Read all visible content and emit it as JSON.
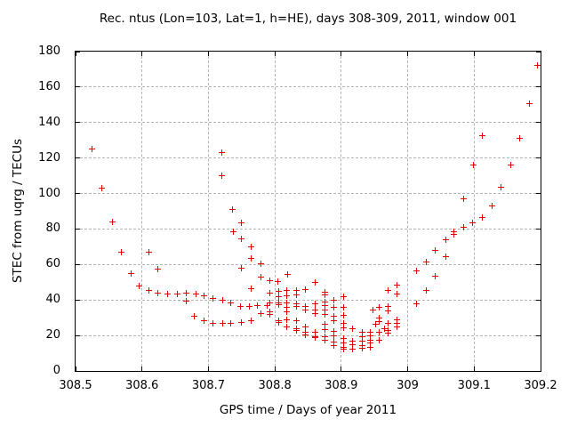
{
  "chart_data": {
    "type": "scatter",
    "title": "Rec. ntus (Lon=103, Lat=1, h=HE), days 308-309, 2011, window 001",
    "xlabel": "GPS time / Days of year 2011",
    "ylabel": "STEC from uqrg / TECUs",
    "xlim": [
      308.5,
      309.2
    ],
    "ylim": [
      0,
      180
    ],
    "xticks": [
      [
        308.5,
        "308.5"
      ],
      [
        308.6,
        "308.6"
      ],
      [
        308.7,
        "308.7"
      ],
      [
        308.8,
        "308.8"
      ],
      [
        308.9,
        "308.9"
      ],
      [
        309.0,
        "309"
      ],
      [
        309.1,
        "309.1"
      ],
      [
        309.2,
        "309.2"
      ]
    ],
    "yticks": [
      [
        0,
        "0"
      ],
      [
        20,
        "20"
      ],
      [
        40,
        "40"
      ],
      [
        60,
        "60"
      ],
      [
        80,
        "80"
      ],
      [
        100,
        "100"
      ],
      [
        120,
        "120"
      ],
      [
        140,
        "140"
      ],
      [
        160,
        "160"
      ],
      [
        180,
        "180"
      ]
    ],
    "grid": true,
    "legend_visible": false,
    "marker": "plus",
    "marker_color": "#e60000",
    "grid_color": "#b3b3b3",
    "border_color": "#000000",
    "points": [
      [
        308.525,
        125
      ],
      [
        308.54,
        103
      ],
      [
        308.555,
        84
      ],
      [
        308.569,
        67
      ],
      [
        308.583,
        55
      ],
      [
        308.596,
        48
      ],
      [
        308.61,
        45.5
      ],
      [
        308.624,
        44
      ],
      [
        308.638,
        43.5
      ],
      [
        308.653,
        43.5
      ],
      [
        308.666,
        44
      ],
      [
        308.666,
        39.5
      ],
      [
        308.61,
        67
      ],
      [
        308.624,
        57.5
      ],
      [
        308.681,
        43.5
      ],
      [
        308.694,
        42.5
      ],
      [
        308.707,
        41
      ],
      [
        308.721,
        40
      ],
      [
        308.734,
        38.5
      ],
      [
        308.748,
        36.5
      ],
      [
        308.761,
        36.5
      ],
      [
        308.774,
        37
      ],
      [
        308.788,
        37
      ],
      [
        308.679,
        31
      ],
      [
        308.694,
        28.5
      ],
      [
        308.707,
        27
      ],
      [
        308.721,
        27
      ],
      [
        308.734,
        27
      ],
      [
        308.749,
        27.5
      ],
      [
        308.765,
        28.5
      ],
      [
        308.779,
        32.5
      ],
      [
        308.72,
        123
      ],
      [
        308.72,
        110
      ],
      [
        308.736,
        91
      ],
      [
        308.75,
        83.5
      ],
      [
        308.737,
        78.5
      ],
      [
        308.75,
        74.5
      ],
      [
        308.765,
        70
      ],
      [
        308.765,
        63.5
      ],
      [
        308.75,
        58
      ],
      [
        308.779,
        60.5
      ],
      [
        308.779,
        53
      ],
      [
        308.792,
        51
      ],
      [
        308.804,
        50.5
      ],
      [
        308.819,
        54.5
      ],
      [
        308.765,
        46.5
      ],
      [
        308.792,
        44
      ],
      [
        308.792,
        38.5
      ],
      [
        308.792,
        33.5
      ],
      [
        308.792,
        32
      ],
      [
        308.806,
        45
      ],
      [
        308.806,
        42
      ],
      [
        308.806,
        38.5
      ],
      [
        308.806,
        37.5
      ],
      [
        308.806,
        28.5
      ],
      [
        308.806,
        27.5
      ],
      [
        308.818,
        45.5
      ],
      [
        308.818,
        42.5
      ],
      [
        308.818,
        38.5
      ],
      [
        308.818,
        36
      ],
      [
        308.818,
        33.5
      ],
      [
        308.818,
        29
      ],
      [
        308.818,
        25
      ],
      [
        308.832,
        45.5
      ],
      [
        308.832,
        43
      ],
      [
        308.832,
        38
      ],
      [
        308.832,
        36.5
      ],
      [
        308.832,
        28.5
      ],
      [
        308.832,
        24
      ],
      [
        308.832,
        23
      ],
      [
        308.846,
        46
      ],
      [
        308.846,
        36.5
      ],
      [
        308.846,
        34.5
      ],
      [
        308.846,
        25
      ],
      [
        308.846,
        22
      ],
      [
        308.846,
        20.5
      ],
      [
        308.861,
        50
      ],
      [
        308.861,
        38
      ],
      [
        308.861,
        34.5
      ],
      [
        308.861,
        32.5
      ],
      [
        308.861,
        22
      ],
      [
        308.861,
        19.5
      ],
      [
        308.861,
        19
      ],
      [
        308.875,
        44.5
      ],
      [
        308.875,
        43
      ],
      [
        308.875,
        39
      ],
      [
        308.875,
        37
      ],
      [
        308.875,
        34.5
      ],
      [
        308.875,
        32
      ],
      [
        308.875,
        26.5
      ],
      [
        308.875,
        23.5
      ],
      [
        308.875,
        19.5
      ],
      [
        308.875,
        17.5
      ],
      [
        308.889,
        40
      ],
      [
        308.889,
        36
      ],
      [
        308.889,
        31
      ],
      [
        308.889,
        28.5
      ],
      [
        308.889,
        22.5
      ],
      [
        308.889,
        20
      ],
      [
        308.889,
        16.5
      ],
      [
        308.889,
        14.5
      ],
      [
        308.903,
        42
      ],
      [
        308.903,
        36
      ],
      [
        308.903,
        31.5
      ],
      [
        308.903,
        27
      ],
      [
        308.903,
        24.5
      ],
      [
        308.903,
        18.5
      ],
      [
        308.903,
        16
      ],
      [
        308.903,
        13.5
      ],
      [
        308.903,
        12.5
      ],
      [
        308.917,
        24
      ],
      [
        308.917,
        17
      ],
      [
        308.917,
        15
      ],
      [
        308.917,
        12.5
      ],
      [
        308.931,
        22
      ],
      [
        308.931,
        19.5
      ],
      [
        308.931,
        17
      ],
      [
        308.931,
        14.5
      ],
      [
        308.931,
        12.7
      ],
      [
        308.944,
        22
      ],
      [
        308.944,
        20
      ],
      [
        308.944,
        17.5
      ],
      [
        308.944,
        16
      ],
      [
        308.944,
        13.5
      ],
      [
        308.948,
        34.5
      ],
      [
        308.952,
        26.5
      ],
      [
        308.957,
        36
      ],
      [
        308.957,
        30
      ],
      [
        308.957,
        28
      ],
      [
        308.957,
        22
      ],
      [
        308.957,
        17.5
      ],
      [
        308.965,
        24
      ],
      [
        308.971,
        45.5
      ],
      [
        308.971,
        36.5
      ],
      [
        308.971,
        34
      ],
      [
        308.971,
        27
      ],
      [
        308.971,
        23
      ],
      [
        308.971,
        21.5
      ],
      [
        308.984,
        48.5
      ],
      [
        308.984,
        43.5
      ],
      [
        308.984,
        29
      ],
      [
        308.984,
        27
      ],
      [
        308.984,
        25
      ],
      [
        309.013,
        56.5
      ],
      [
        309.013,
        38
      ],
      [
        309.028,
        61.5
      ],
      [
        309.028,
        45.5
      ],
      [
        309.042,
        68
      ],
      [
        309.042,
        53.5
      ],
      [
        309.057,
        74
      ],
      [
        309.057,
        64.5
      ],
      [
        309.07,
        78.5
      ],
      [
        309.07,
        77
      ],
      [
        309.084,
        81
      ],
      [
        309.084,
        97
      ],
      [
        309.098,
        83.5
      ],
      [
        309.099,
        116
      ],
      [
        309.113,
        86.5
      ],
      [
        309.113,
        132.5
      ],
      [
        309.127,
        93
      ],
      [
        309.14,
        103.5
      ],
      [
        309.155,
        116
      ],
      [
        309.169,
        131
      ],
      [
        309.183,
        150.5
      ],
      [
        309.195,
        172
      ]
    ]
  }
}
